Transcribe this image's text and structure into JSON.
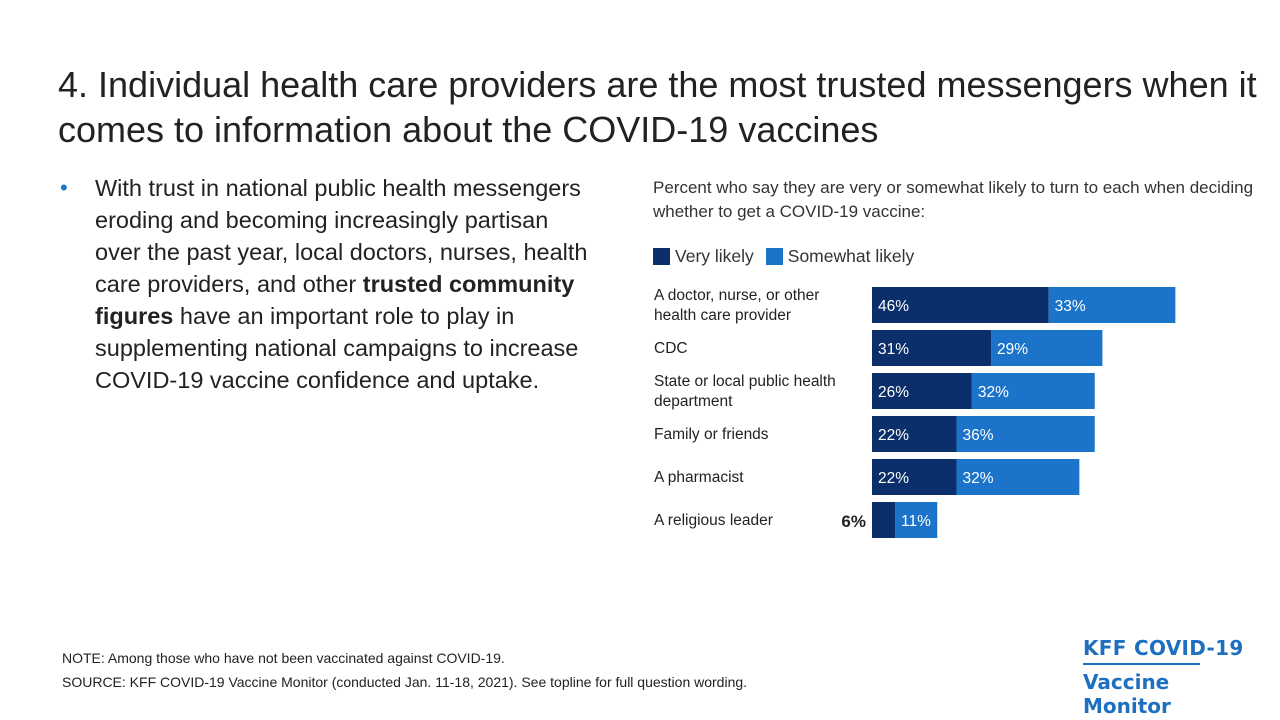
{
  "title": "4. Individual health care providers are the most trusted messengers when it comes to information about the COVID-19 vaccines",
  "bullet": {
    "part1": "With trust in national public health messengers eroding and becoming increasingly partisan over the past year, local doctors, nurses, health care providers, and other ",
    "bold": "trusted community figures",
    "part2": " have an important role to play in supplementing national campaigns to increase COVID-19 vaccine confidence and uptake."
  },
  "chart_data": {
    "type": "bar",
    "orientation": "horizontal",
    "stacked": true,
    "subtitle": "Percent who say they are very or somewhat likely to turn to each when deciding whether to get a COVID-19 vaccine:",
    "categories": [
      "A doctor, nurse, or other health care provider",
      "CDC",
      "State or local public health department",
      "Family or friends",
      "A pharmacist",
      "A religious leader"
    ],
    "series": [
      {
        "name": "Very likely",
        "color": "#0b2f6b",
        "values": [
          46,
          31,
          26,
          22,
          22,
          6
        ]
      },
      {
        "name": "Somewhat likely",
        "color": "#1b74c9",
        "values": [
          33,
          29,
          32,
          36,
          32,
          11
        ]
      }
    ],
    "value_suffix": "%",
    "legend_position": "top-left",
    "xlim": [
      0,
      100
    ]
  },
  "footer": {
    "note": "NOTE: Among those who have not been vaccinated against COVID-19.",
    "source": "SOURCE: KFF COVID-19 Vaccine Monitor (conducted Jan. 11-18, 2021). See topline for full question wording."
  },
  "logo": {
    "line1": "KFF COVID-19",
    "line2": "Vaccine Monitor"
  }
}
